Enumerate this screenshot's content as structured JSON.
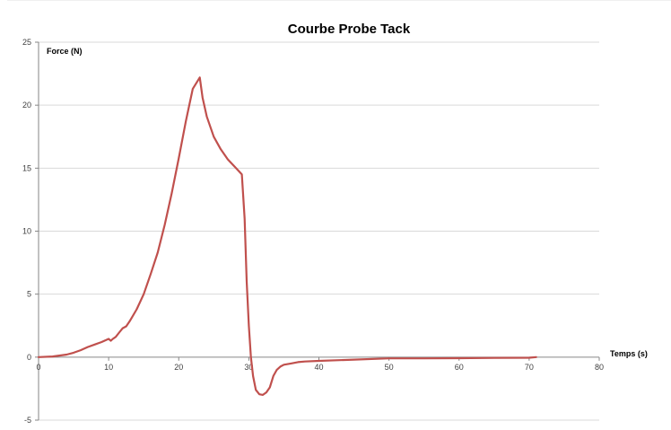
{
  "chart_data": {
    "type": "line",
    "title": "Courbe Probe Tack",
    "xlabel": "Temps (s)",
    "ylabel": "Force (N)",
    "xlim": [
      0,
      80
    ],
    "ylim": [
      -5,
      25
    ],
    "x_ticks": [
      0,
      10,
      20,
      30,
      40,
      50,
      60,
      70,
      80
    ],
    "y_ticks": [
      -5,
      0,
      5,
      10,
      15,
      20,
      25
    ],
    "grid": "horizontal",
    "legend": "none",
    "series": [
      {
        "color": "#c0504d",
        "x": [
          0,
          2,
          4,
          5,
          6,
          7,
          8,
          9,
          10,
          10.3,
          10.6,
          11,
          11.5,
          12,
          12.5,
          13,
          14,
          15,
          16,
          17,
          18,
          19,
          20,
          21,
          22,
          23,
          23.4,
          24,
          25,
          26,
          27,
          28,
          29,
          29.4,
          29.7,
          30,
          30.3,
          30.6,
          31,
          31.5,
          32,
          32.5,
          33,
          33.5,
          34,
          34.5,
          35,
          36,
          37,
          38,
          40,
          45,
          50,
          55,
          60,
          65,
          70,
          71
        ],
        "y": [
          0,
          0.05,
          0.2,
          0.35,
          0.55,
          0.8,
          1.0,
          1.2,
          1.45,
          1.3,
          1.45,
          1.6,
          1.95,
          2.3,
          2.45,
          2.85,
          3.8,
          5.0,
          6.6,
          8.3,
          10.5,
          13.0,
          15.8,
          18.7,
          21.3,
          22.2,
          20.6,
          19.1,
          17.5,
          16.5,
          15.7,
          15.1,
          14.5,
          11.0,
          6.0,
          2.5,
          0.0,
          -1.5,
          -2.6,
          -2.95,
          -3.0,
          -2.8,
          -2.4,
          -1.5,
          -1.0,
          -0.75,
          -0.6,
          -0.5,
          -0.4,
          -0.35,
          -0.3,
          -0.2,
          -0.1,
          -0.1,
          -0.08,
          -0.06,
          -0.05,
          0.0
        ]
      }
    ]
  }
}
